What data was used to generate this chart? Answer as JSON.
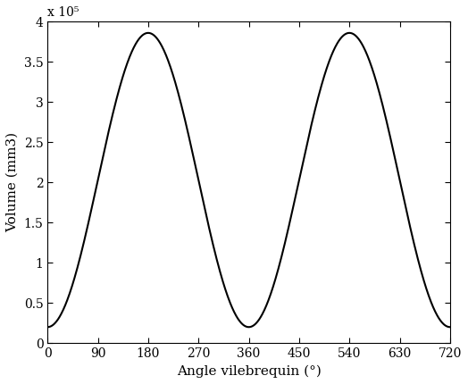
{
  "title": "",
  "xlabel": "Angle vilebrequin (°)",
  "ylabel": "Volume (mm3)",
  "xlim": [
    0,
    720
  ],
  "ylim": [
    0,
    400000
  ],
  "xtick_positions": [
    0,
    90,
    180,
    270,
    360,
    450,
    540,
    630,
    720
  ],
  "xtick_labels": [
    "0",
    "90",
    "180",
    "270",
    "360",
    "450",
    "540",
    "630",
    "720"
  ],
  "ytick_positions": [
    0,
    50000,
    100000,
    150000,
    200000,
    250000,
    300000,
    350000,
    400000
  ],
  "ytick_labels": [
    "0",
    "0.5",
    "1",
    "1.5",
    "2",
    "2.5",
    "3",
    "3.5",
    "4"
  ],
  "exponent_label": "x 10⁵",
  "line_color": "#000000",
  "line_width": 1.5,
  "background_color": "#ffffff",
  "V_min": 20000,
  "V_max": 386000,
  "num_points": 1000,
  "font_family": "DejaVu Serif",
  "font_size": 10,
  "label_fontsize": 11
}
